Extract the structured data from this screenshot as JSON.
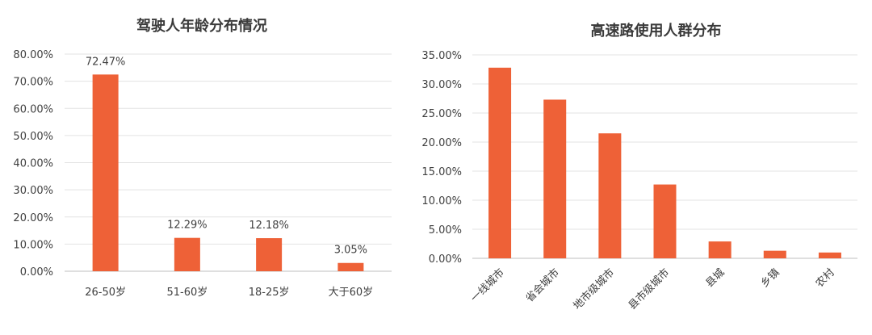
{
  "chart_data": [
    {
      "type": "bar",
      "title": "驾驶人年龄分布情况",
      "categories": [
        "26-50岁",
        "51-60岁",
        "18-25岁",
        "大于60岁"
      ],
      "values": [
        72.47,
        12.29,
        12.18,
        3.05
      ],
      "data_labels": [
        "72.47%",
        "12.29%",
        "12.18%",
        "3.05%"
      ],
      "y_ticks": [
        "0.00%",
        "10.00%",
        "20.00%",
        "30.00%",
        "40.00%",
        "50.00%",
        "60.00%",
        "70.00%",
        "80.00%"
      ],
      "ylim": [
        0,
        80
      ],
      "grid": true,
      "bar_color": "#EE6137"
    },
    {
      "type": "bar",
      "title": "高速路使用人群分布",
      "categories": [
        "一线城市",
        "省会城市",
        "地市级城市",
        "县市级城市",
        "县城",
        "乡镇",
        "农村"
      ],
      "values": [
        32.8,
        27.3,
        21.5,
        12.7,
        2.9,
        1.3,
        1.0
      ],
      "y_ticks": [
        "0.00%",
        "5.00%",
        "10.00%",
        "15.00%",
        "20.00%",
        "25.00%",
        "30.00%",
        "35.00%"
      ],
      "ylim": [
        0,
        35
      ],
      "grid": true,
      "bar_color": "#EE6137"
    }
  ]
}
